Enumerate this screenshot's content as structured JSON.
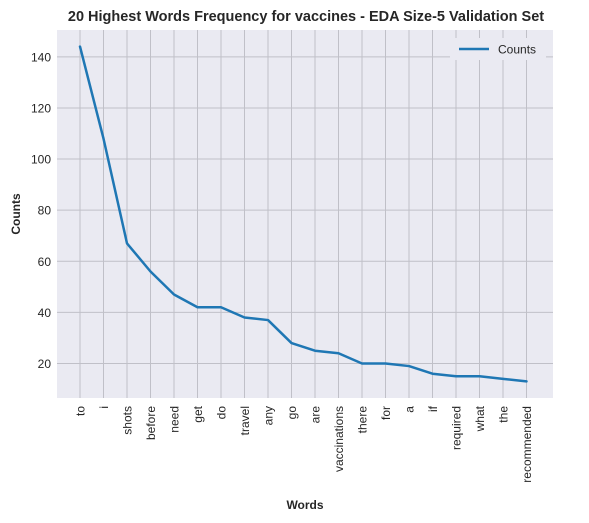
{
  "chart_data": {
    "type": "line",
    "title": "20 Highest Words Frequency for vaccines - EDA Size-5 Validation Set",
    "xlabel": "Words",
    "ylabel": "Counts",
    "categories": [
      "to",
      "i",
      "shots",
      "before",
      "need",
      "get",
      "do",
      "travel",
      "any",
      "go",
      "are",
      "vaccinations",
      "there",
      "for",
      "a",
      "if",
      "required",
      "what",
      "the",
      "recommended"
    ],
    "series": [
      {
        "name": "Counts",
        "color": "#1f77b4",
        "values": [
          144,
          108,
          67,
          56,
          47,
          42,
          42,
          38,
          37,
          28,
          25,
          24,
          20,
          20,
          19,
          16,
          15,
          15,
          14,
          13
        ]
      }
    ],
    "yticks": [
      20,
      40,
      60,
      80,
      100,
      120,
      140
    ],
    "ylim": [
      6.5,
      150.5
    ],
    "grid": true,
    "legend": "top-right",
    "background": "#eaeaf2",
    "grid_color": "#c0c0c8"
  }
}
